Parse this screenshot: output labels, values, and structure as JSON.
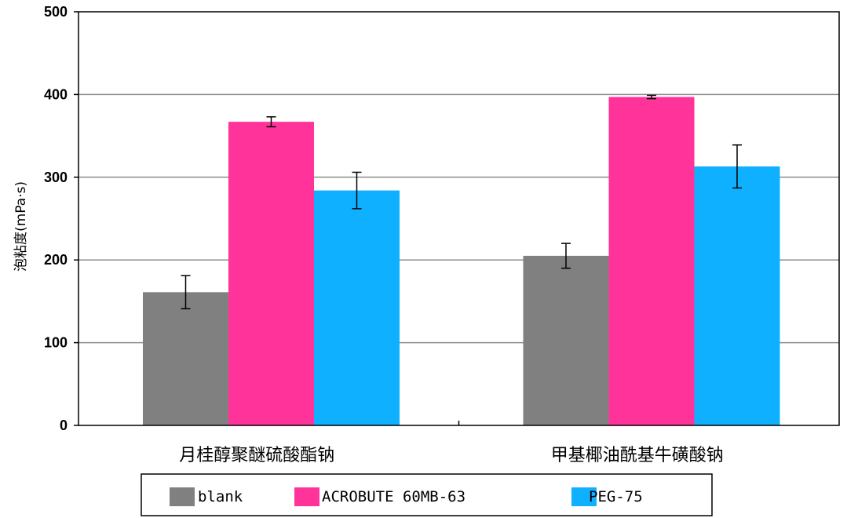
{
  "chart_data": {
    "type": "bar",
    "title": "",
    "xlabel": "",
    "ylabel": "泡粘度(mPa·s)",
    "ylim": [
      0,
      500
    ],
    "yticks": [
      0,
      100,
      200,
      300,
      400,
      500
    ],
    "grid": true,
    "legend_position": "bottom",
    "categories": [
      "月桂醇聚醚硫酸酯钠",
      "甲基椰油酰基牛磺酸钠"
    ],
    "series": [
      {
        "name": "blank",
        "color": "#808080",
        "values": [
          161,
          205
        ],
        "errors": [
          20,
          15
        ]
      },
      {
        "name": "ACROBUTE 60MB-63",
        "color": "#ff3399",
        "values": [
          367,
          397
        ],
        "errors": [
          6,
          2
        ]
      },
      {
        "name": "PEG-75",
        "color": "#0fb0ff",
        "values": [
          284,
          313
        ],
        "errors": [
          22,
          26
        ]
      }
    ]
  }
}
